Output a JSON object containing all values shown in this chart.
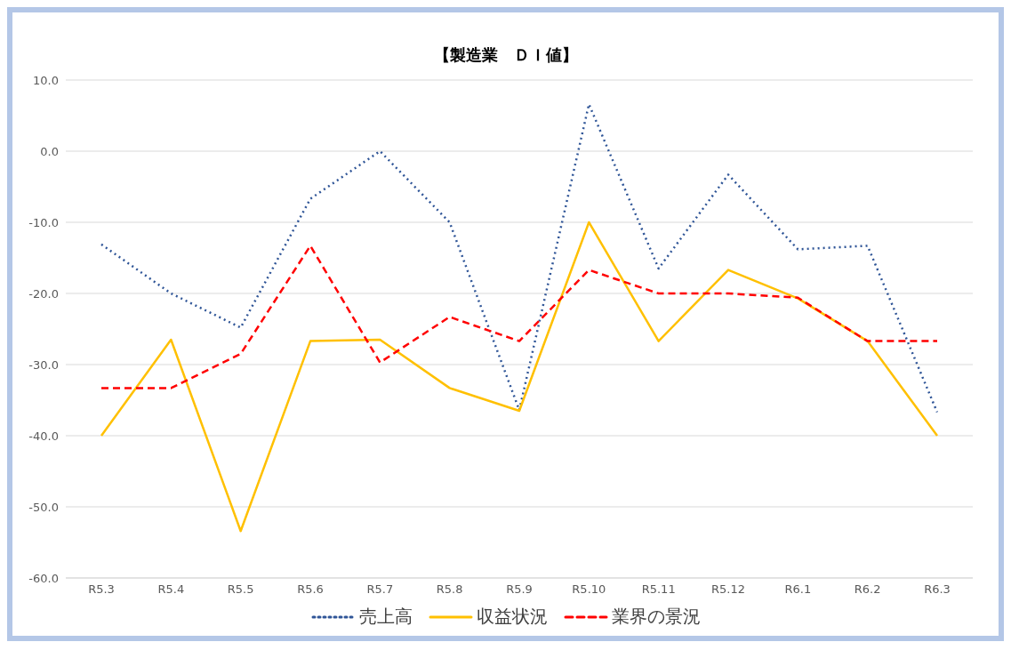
{
  "chart_data": {
    "type": "line",
    "title": "【製造業　ＤＩ値】",
    "categories": [
      "R5.3",
      "R5.4",
      "R5.5",
      "R5.6",
      "R5.7",
      "R5.8",
      "R5.9",
      "R5.10",
      "R5.11",
      "R5.12",
      "R6.1",
      "R6.2",
      "R6.3"
    ],
    "series": [
      {
        "name": "売上高",
        "color": "#2f5597",
        "line_style": "dotted",
        "values": [
          -13.1,
          -20,
          -24.8,
          -6.7,
          0,
          -10,
          -36.4,
          6.6,
          -16.5,
          -3.3,
          -13.8,
          -13.3,
          -36.7
        ]
      },
      {
        "name": "収益状況",
        "color": "#ffc000",
        "line_style": "solid",
        "values": [
          -40,
          -26.5,
          -53.4,
          -26.7,
          -26.5,
          -33.3,
          -36.5,
          -10,
          -26.7,
          -16.7,
          -20.7,
          -26.7,
          -40
        ]
      },
      {
        "name": "業界の景況",
        "color": "#ff0000",
        "line_style": "dashed",
        "values": [
          -33.3,
          -33.3,
          -28.5,
          -13.3,
          -29.7,
          -23.3,
          -26.7,
          -16.7,
          -20,
          -20,
          -20.6,
          -26.7,
          -26.7
        ]
      }
    ],
    "ylim": [
      -60,
      10
    ],
    "yticks": [
      {
        "value": -60,
        "label": "-60.0"
      },
      {
        "value": -50,
        "label": "-50.0"
      },
      {
        "value": -40,
        "label": "-40.0"
      },
      {
        "value": -30,
        "label": "-30.0"
      },
      {
        "value": -20,
        "label": "-20.0"
      },
      {
        "value": -10,
        "label": "-10.0"
      },
      {
        "value": 0,
        "label": "0.0"
      },
      {
        "value": 10,
        "label": "10.0"
      }
    ],
    "grid": "y",
    "legend": "bottom",
    "marker": "none"
  }
}
